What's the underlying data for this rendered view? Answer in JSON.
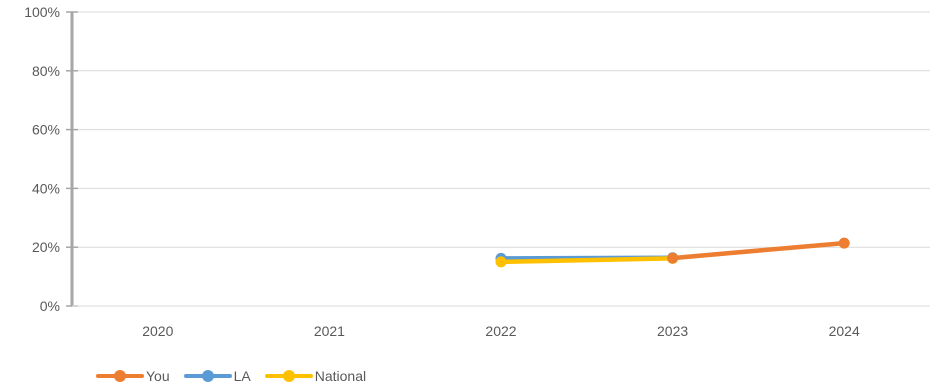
{
  "chart_data": {
    "type": "line",
    "categories": [
      "2020",
      "2021",
      "2022",
      "2023",
      "2024"
    ],
    "ylim": [
      0,
      100
    ],
    "yticks": [
      0,
      20,
      40,
      60,
      80,
      100
    ],
    "ytick_labels": [
      "0%",
      "20%",
      "40%",
      "60%",
      "80%",
      "100%"
    ],
    "grid": true,
    "legend_position": "bottom-left",
    "series": [
      {
        "name": "You",
        "color": "#ED7D31",
        "values": [
          null,
          null,
          null,
          16.3,
          21.4
        ]
      },
      {
        "name": "LA",
        "color": "#5B9BD5",
        "values": [
          null,
          null,
          16.2,
          16.4,
          null
        ]
      },
      {
        "name": "National",
        "color": "#FFC000",
        "values": [
          null,
          null,
          15.0,
          16.2,
          null
        ]
      }
    ]
  }
}
